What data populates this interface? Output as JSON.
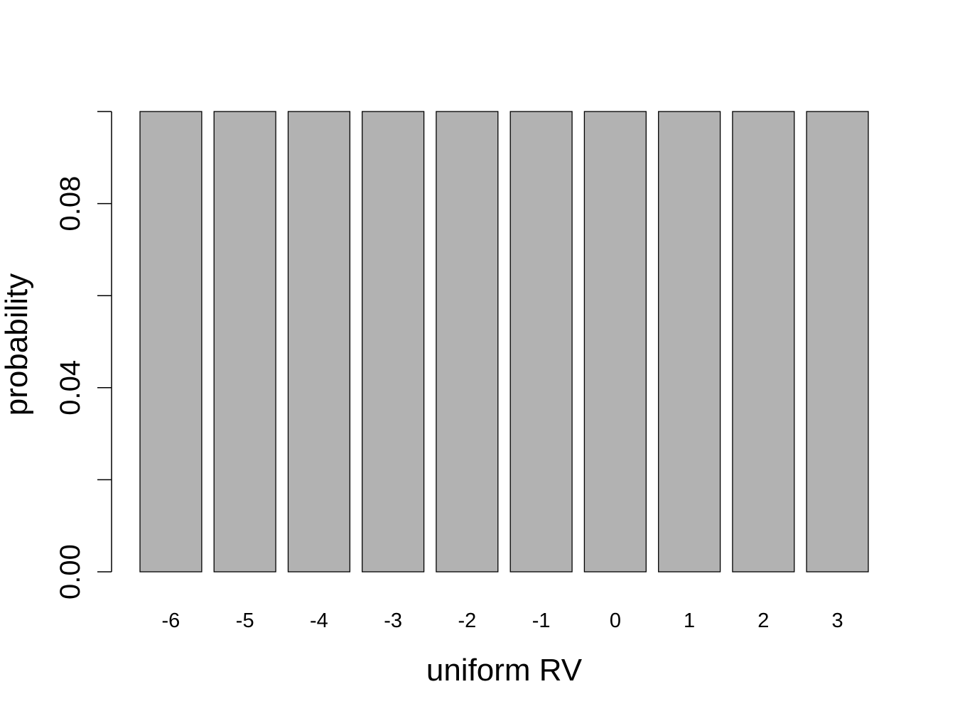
{
  "chart_data": {
    "type": "bar",
    "categories": [
      "-6",
      "-5",
      "-4",
      "-3",
      "-2",
      "-1",
      "0",
      "1",
      "2",
      "3"
    ],
    "values": [
      0.1,
      0.1,
      0.1,
      0.1,
      0.1,
      0.1,
      0.1,
      0.1,
      0.1,
      0.1
    ],
    "xlabel": "uniform RV",
    "ylabel": "probability",
    "ylim": [
      0,
      0.1
    ],
    "yticks": [
      0,
      0.02,
      0.04,
      0.06,
      0.08,
      0.1
    ],
    "ytick_labels": [
      "0.00",
      "0.04",
      "0.08"
    ],
    "labeled_ytick_values": [
      0,
      0.04,
      0.08
    ],
    "grid": false,
    "bar_color": "#b2b2b2",
    "edge_color": "#000000"
  }
}
